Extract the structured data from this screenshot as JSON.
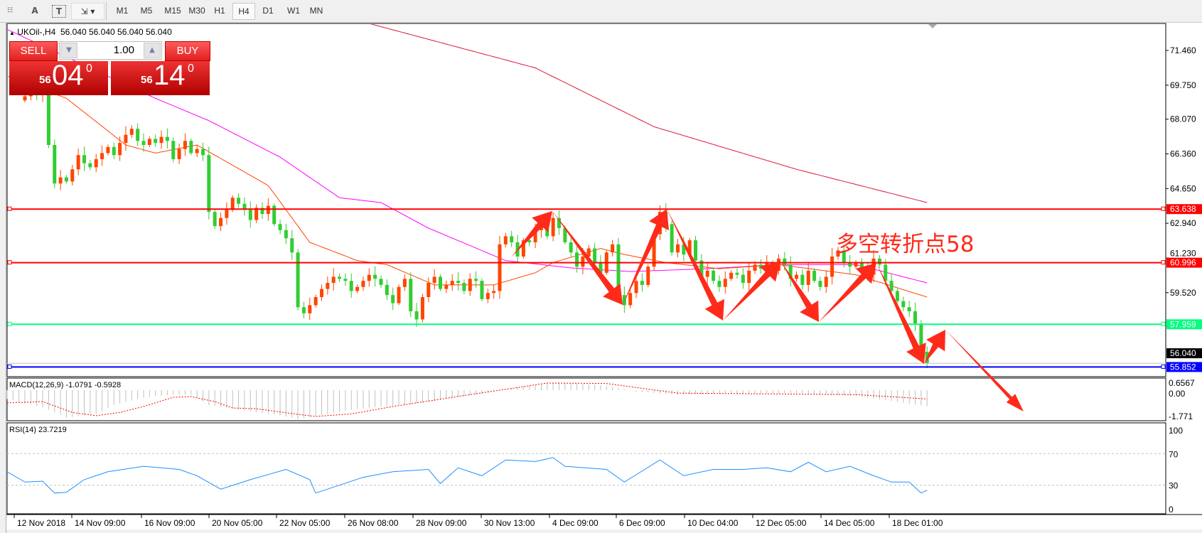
{
  "toolbar": {
    "icons": [
      "grid-icon",
      "text-icon",
      "text-label-icon",
      "arrows-icon"
    ],
    "text_tool_label": "A",
    "text_label_tool_label": "T",
    "timeframes": [
      "M1",
      "M5",
      "M15",
      "M30",
      "H1",
      "H4",
      "D1",
      "W1",
      "MN"
    ],
    "selected_timeframe": "H4"
  },
  "header": {
    "symbol": "UKOil-,H4",
    "ohlc": "56.040 56.040 56.040 56.040"
  },
  "trade_panel": {
    "sell_label": "SELL",
    "buy_label": "BUY",
    "volume": "1.00",
    "sell_price_small": "56",
    "sell_price_big": "04",
    "sell_price_sup": "0",
    "buy_price_small": "56",
    "buy_price_big": "14",
    "buy_price_sup": "0"
  },
  "annotation_text": "多空转折点58",
  "chart_data": {
    "type": "candlestick",
    "symbol": "UKOil",
    "timeframe": "H4",
    "colors": {
      "bull": "#ff4500",
      "bear": "#32cd32",
      "ma_fast": "#ff4500",
      "ma_mid": "#ff00ff",
      "ma_slow": "#dc143c",
      "arrows": "#ff2a1a"
    },
    "price_ticks": [
      "71.460",
      "69.750",
      "68.070",
      "66.360",
      "64.650",
      "62.940",
      "61.230",
      "59.520"
    ],
    "ylim": [
      55.6,
      72.8
    ],
    "first_open": 69.0,
    "closes": [
      69.2,
      69.4,
      69.3,
      69.5,
      66.8,
      64.9,
      65.2,
      65.0,
      65.6,
      66.3,
      65.9,
      65.7,
      66.1,
      66.4,
      66.7,
      66.3,
      66.9,
      67.3,
      67.6,
      67.0,
      66.8,
      67.1,
      66.9,
      67.2,
      67.0,
      66.1,
      66.6,
      67.0,
      66.4,
      66.6,
      66.3,
      63.5,
      62.8,
      63.2,
      63.6,
      64.2,
      63.9,
      63.6,
      63.1,
      63.7,
      63.4,
      63.8,
      62.9,
      62.6,
      62.2,
      61.5,
      58.8,
      58.5,
      58.9,
      59.3,
      59.7,
      60.0,
      60.3,
      60.2,
      60.1,
      59.6,
      59.8,
      60.1,
      60.4,
      60.2,
      59.9,
      59.4,
      59.0,
      59.8,
      60.2,
      58.6,
      58.2,
      59.3,
      60.0,
      60.3,
      59.7,
      59.9,
      60.1,
      60.0,
      59.6,
      60.2,
      60.1,
      59.2,
      59.5,
      59.6,
      61.9,
      62.3,
      62.0,
      61.3,
      62.1,
      62.0,
      62.6,
      62.9,
      62.3,
      63.2,
      62.7,
      62.0,
      61.5,
      60.8,
      61.3,
      61.7,
      61.0,
      60.5,
      61.5,
      61.9,
      59.4,
      58.9,
      59.5,
      60.1,
      59.9,
      60.8,
      62.4,
      63.5,
      62.9,
      61.5,
      61.9,
      61.4,
      62.1,
      61.1,
      60.3,
      60.6,
      60.1,
      59.8,
      60.2,
      60.5,
      60.4,
      60.0,
      60.6,
      60.9,
      60.7,
      61.0,
      60.6,
      61.2,
      60.9,
      60.2,
      60.4,
      59.9,
      60.6,
      60.1,
      59.8,
      60.3,
      61.3,
      61.6,
      61.0,
      60.8,
      61.0,
      60.7,
      60.4,
      61.2,
      60.9,
      60.1,
      59.6,
      59.1,
      58.8,
      58.6,
      58.0,
      56.6,
      56.04
    ],
    "ma_fast": [
      [
        -3,
        70.2
      ],
      [
        7,
        69.1
      ],
      [
        17,
        66.8
      ],
      [
        22,
        66.4
      ],
      [
        29,
        66.8
      ],
      [
        41,
        64.8
      ],
      [
        48,
        62.0
      ],
      [
        56,
        61.1
      ],
      [
        61,
        60.9
      ],
      [
        69,
        59.9
      ],
      [
        79,
        59.9
      ],
      [
        86,
        60.5
      ],
      [
        89,
        61.0
      ],
      [
        97,
        61.7
      ],
      [
        101,
        61.4
      ],
      [
        108,
        61.0
      ],
      [
        117,
        60.7
      ],
      [
        127,
        60.9
      ],
      [
        140,
        60.4
      ],
      [
        152,
        59.3
      ]
    ],
    "ma_mid": [
      [
        -3,
        72.5
      ],
      [
        22,
        69.1
      ],
      [
        31,
        68.0
      ],
      [
        43,
        66.2
      ],
      [
        53,
        64.2
      ],
      [
        60,
        63.96
      ],
      [
        68,
        62.7
      ],
      [
        81,
        61.1
      ],
      [
        92,
        60.74
      ],
      [
        102,
        60.56
      ],
      [
        115,
        60.7
      ],
      [
        127,
        60.9
      ],
      [
        140,
        60.9
      ],
      [
        152,
        60.0
      ]
    ],
    "ma_slow": [
      [
        58,
        72.79
      ],
      [
        86,
        70.6
      ],
      [
        106,
        67.7
      ],
      [
        130,
        65.6
      ],
      [
        152,
        63.96
      ]
    ],
    "levels": [
      {
        "price": "63.638",
        "color": "#ff0000"
      },
      {
        "price": "60.996",
        "color": "#ff0000"
      },
      {
        "price": "57.959",
        "color": "#00ff7f"
      },
      {
        "price": "55.852",
        "color": "#0000ff"
      }
    ],
    "bid_price": "56.040",
    "time_labels": [
      "12 Nov 2018",
      "14 Nov 09:00",
      "16 Nov 09:00",
      "20 Nov 05:00",
      "22 Nov 05:00",
      "26 Nov 08:00",
      "28 Nov 09:00",
      "30 Nov 13:00",
      "4 Dec 09:00",
      "6 Dec 09:00",
      "10 Dec 04:00",
      "12 Dec 05:00",
      "14 Dec 05:00",
      "18 Dec 01:00"
    ],
    "macd": {
      "label": "MACD(12,26,9) -1.0791 -0.5928",
      "ticks": [
        "0.6567",
        "0.00",
        "-1.771"
      ],
      "histogram": [
        [
          -3,
          -0.6
        ],
        [
          3,
          -1.15
        ],
        [
          7,
          -1.85
        ],
        [
          12,
          -1.6
        ],
        [
          15,
          -1.0
        ],
        [
          20,
          -0.5
        ],
        [
          25,
          -0.3
        ],
        [
          28,
          -0.3
        ],
        [
          31,
          -1.0
        ],
        [
          35,
          -1.25
        ],
        [
          43,
          -1.7
        ],
        [
          46,
          -1.95
        ],
        [
          51,
          -1.6
        ],
        [
          56,
          -1.25
        ],
        [
          66,
          -0.9
        ],
        [
          76,
          -0.3
        ],
        [
          83,
          0.2
        ],
        [
          90,
          0.55
        ],
        [
          98,
          0.3
        ],
        [
          103,
          -0.1
        ],
        [
          110,
          -0.3
        ],
        [
          120,
          -0.25
        ],
        [
          130,
          -0.2
        ],
        [
          140,
          -0.4
        ],
        [
          152,
          -1.0791
        ]
      ],
      "signal": [
        [
          -3,
          -0.86
        ],
        [
          3,
          -0.77
        ],
        [
          8,
          -1.5
        ],
        [
          12,
          -1.72
        ],
        [
          16,
          -1.5
        ],
        [
          20,
          -1.1
        ],
        [
          25,
          -0.48
        ],
        [
          28,
          -0.43
        ],
        [
          32,
          -0.77
        ],
        [
          35,
          -1.2
        ],
        [
          39,
          -1.25
        ],
        [
          46,
          -1.63
        ],
        [
          49,
          -1.77
        ],
        [
          55,
          -1.6
        ],
        [
          62,
          -1.1
        ],
        [
          75,
          -0.3
        ],
        [
          88,
          0.48
        ],
        [
          98,
          0.45
        ],
        [
          110,
          -0.2
        ],
        [
          125,
          -0.25
        ],
        [
          140,
          -0.3
        ],
        [
          152,
          -0.5928
        ]
      ]
    },
    "rsi": {
      "label": "RSI(14) 23.7219",
      "ticks": [
        "100",
        "70",
        "30",
        "0"
      ],
      "levels": [
        70,
        30
      ],
      "values": [
        [
          -3,
          47
        ],
        [
          0,
          34
        ],
        [
          3,
          35
        ],
        [
          5,
          20
        ],
        [
          7,
          21
        ],
        [
          10,
          37
        ],
        [
          14,
          47
        ],
        [
          20,
          54
        ],
        [
          26,
          50
        ],
        [
          29,
          42
        ],
        [
          33,
          25
        ],
        [
          38,
          37
        ],
        [
          44,
          50
        ],
        [
          48,
          37
        ],
        [
          49,
          20
        ],
        [
          53,
          30
        ],
        [
          57,
          40
        ],
        [
          62,
          47
        ],
        [
          68,
          50
        ],
        [
          70,
          32
        ],
        [
          73,
          52
        ],
        [
          77,
          42
        ],
        [
          81,
          62
        ],
        [
          86,
          60
        ],
        [
          89,
          65
        ],
        [
          91,
          54
        ],
        [
          98,
          50
        ],
        [
          101,
          34
        ],
        [
          107,
          62
        ],
        [
          111,
          42
        ],
        [
          116,
          50
        ],
        [
          121,
          50
        ],
        [
          125,
          52
        ],
        [
          129,
          47
        ],
        [
          132,
          59
        ],
        [
          135,
          47
        ],
        [
          139,
          54
        ],
        [
          143,
          42
        ],
        [
          146,
          34
        ],
        [
          149,
          34
        ],
        [
          151,
          20
        ],
        [
          152,
          23.7
        ]
      ]
    }
  }
}
